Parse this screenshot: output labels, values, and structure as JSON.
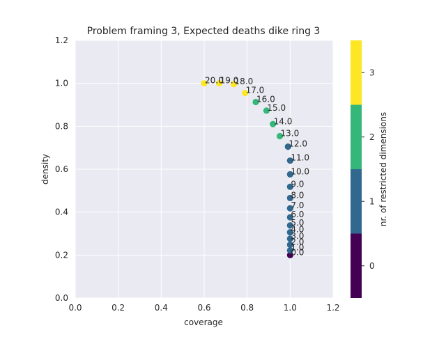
{
  "chart_data": {
    "type": "scatter",
    "title": "Problem framing 3, Expected deaths dike ring 3",
    "xlabel": "coverage",
    "ylabel": "density",
    "xlim": [
      0.0,
      1.2
    ],
    "ylim": [
      0.0,
      1.2
    ],
    "x_ticks": [
      "0.0",
      "0.2",
      "0.4",
      "0.6",
      "0.8",
      "1.0",
      "1.2"
    ],
    "y_ticks": [
      "0.0",
      "0.2",
      "0.4",
      "0.6",
      "0.8",
      "1.0",
      "1.2"
    ],
    "grid": true,
    "background_color": "#eaeaf2",
    "colorbar": {
      "label": "nr. of restricted dimensions",
      "ticks": [
        "0",
        "1",
        "2",
        "3"
      ],
      "colors": [
        "#440154",
        "#31688e",
        "#35b779",
        "#fde725"
      ]
    },
    "points": [
      {
        "label": "0.0",
        "x": 1.0,
        "y": 0.2,
        "dims": 0
      },
      {
        "label": "1.0",
        "x": 1.0,
        "y": 0.222,
        "dims": 1
      },
      {
        "label": "2.0",
        "x": 1.0,
        "y": 0.248,
        "dims": 1
      },
      {
        "label": "3.0",
        "x": 1.0,
        "y": 0.276,
        "dims": 1
      },
      {
        "label": "4.0",
        "x": 1.0,
        "y": 0.306,
        "dims": 1
      },
      {
        "label": "5.0",
        "x": 1.0,
        "y": 0.338,
        "dims": 1
      },
      {
        "label": "6.0",
        "x": 1.0,
        "y": 0.376,
        "dims": 1
      },
      {
        "label": "7.0",
        "x": 1.0,
        "y": 0.418,
        "dims": 1
      },
      {
        "label": "8.0",
        "x": 1.0,
        "y": 0.466,
        "dims": 1
      },
      {
        "label": "9.0",
        "x": 1.0,
        "y": 0.518,
        "dims": 1
      },
      {
        "label": "10.0",
        "x": 1.0,
        "y": 0.576,
        "dims": 1
      },
      {
        "label": "11.0",
        "x": 1.0,
        "y": 0.64,
        "dims": 1
      },
      {
        "label": "12.0",
        "x": 0.99,
        "y": 0.705,
        "dims": 1
      },
      {
        "label": "13.0",
        "x": 0.952,
        "y": 0.754,
        "dims": 2
      },
      {
        "label": "14.0",
        "x": 0.92,
        "y": 0.81,
        "dims": 2
      },
      {
        "label": "15.0",
        "x": 0.89,
        "y": 0.873,
        "dims": 2
      },
      {
        "label": "16.0",
        "x": 0.84,
        "y": 0.913,
        "dims": 2
      },
      {
        "label": "17.0",
        "x": 0.79,
        "y": 0.955,
        "dims": 3
      },
      {
        "label": "18.0",
        "x": 0.738,
        "y": 0.996,
        "dims": 3
      },
      {
        "label": "19.0",
        "x": 0.67,
        "y": 1.0,
        "dims": 3
      },
      {
        "label": "20.0",
        "x": 0.6,
        "y": 1.0,
        "dims": 3
      }
    ]
  }
}
